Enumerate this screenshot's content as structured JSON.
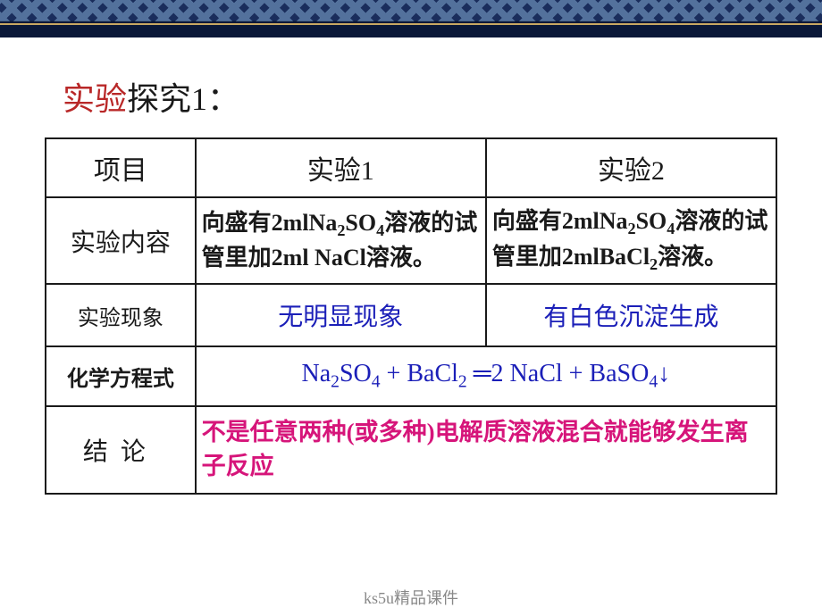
{
  "colors": {
    "title_red": "#b92828",
    "text_black": "#1a1a1a",
    "phenomenon_blue": "#1b1fb8",
    "conclusion_pink": "#d6157a",
    "border": "#1a1a1a",
    "footer_gray": "#888888",
    "top_bg_dark": "#0a1838",
    "top_bg_mid": "#1a2d5c",
    "gold_line": "#c9a862"
  },
  "typography": {
    "title_fontsize": 36,
    "header_fontsize": 30,
    "label_fontsize": 28,
    "content_fontsize": 26,
    "phenomenon_fontsize": 28,
    "conclusion_fontsize": 27,
    "footer_fontsize": 18
  },
  "title": {
    "part1": "实验",
    "part2": "探究1："
  },
  "table": {
    "headers": {
      "col0": "项目",
      "col1": "实验1",
      "col2": "实验2"
    },
    "rows": {
      "content": {
        "label": "实验内容",
        "exp1_html": "向盛有2mlNa<span class=\"sub\">2</span>SO<span class=\"sub\">4</span>溶液的试管里加2ml NaCl溶液。",
        "exp2_html": "向盛有2mlNa<span class=\"sub\">2</span>SO<span class=\"sub\">4</span>溶液的试管里加2mlBaCl<span class=\"sub\">2</span>溶液。"
      },
      "phenomenon": {
        "label": "实验现象",
        "exp1": "无明显现象",
        "exp2": "有白色沉淀生成"
      },
      "equation": {
        "label": "化学方程式",
        "value_html": "Na<span class=\"sub\">2</span>SO<span class=\"sub\">4</span> + BaCl<span class=\"sub\">2</span> ═2 NaCl + BaSO<span class=\"sub\">4</span>↓"
      },
      "conclusion": {
        "label": "结论",
        "value": "不是任意两种(或多种)电解质溶液混合就能够发生离子反应"
      }
    }
  },
  "footer": "ks5u精品课件"
}
